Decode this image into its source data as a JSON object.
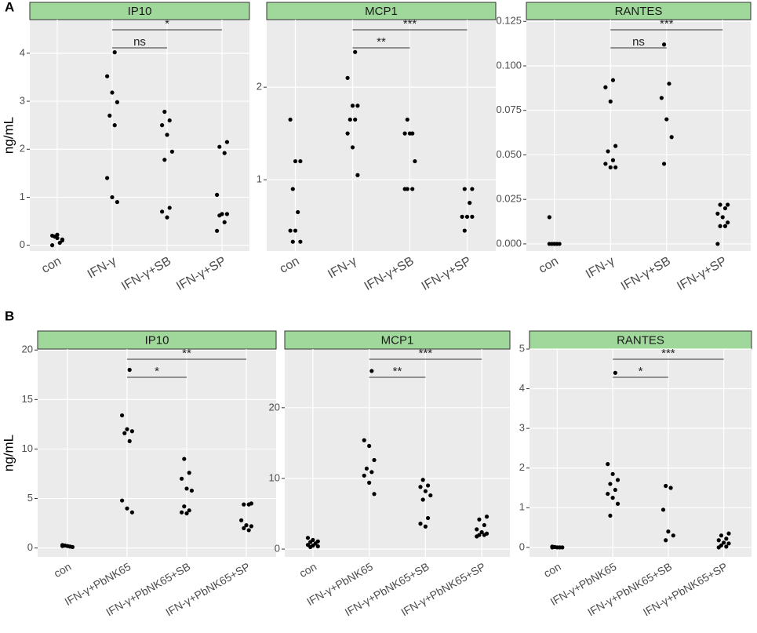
{
  "figure_labels": [
    "A",
    "B"
  ],
  "chart_data": [
    {
      "type": "strip",
      "title": "IP10",
      "ylabel": "ng/mL",
      "categories": [
        "con",
        "IFN-γ",
        "IFN-γ+SB",
        "IFN-γ+SP"
      ],
      "values": [
        [
          0.2,
          0.15,
          0.1,
          0.18,
          0.05,
          0.0,
          0.22,
          0.12
        ],
        [
          4.02,
          3.52,
          3.18,
          2.98,
          2.7,
          2.5,
          1.4,
          1.0,
          0.9
        ],
        [
          2.78,
          2.6,
          2.5,
          2.3,
          1.95,
          1.78,
          0.78,
          0.7,
          0.58
        ],
        [
          2.15,
          2.05,
          1.92,
          1.05,
          0.65,
          0.65,
          0.62,
          0.48,
          0.3
        ]
      ],
      "ylim": [
        -0.12,
        4.7
      ],
      "yticks": [
        0,
        1,
        2,
        3,
        4
      ],
      "brackets": [
        {
          "label": "*",
          "between": [
            1,
            3
          ]
        },
        {
          "label": "ns",
          "between": [
            1,
            2
          ]
        }
      ]
    },
    {
      "type": "strip",
      "title": "MCP1",
      "categories": [
        "con",
        "IFN-γ",
        "IFN-γ+SB",
        "IFN-γ+SP"
      ],
      "values": [
        [
          1.65,
          1.2,
          1.2,
          0.9,
          0.65,
          0.45,
          0.45,
          0.33,
          0.33
        ],
        [
          2.38,
          2.1,
          1.8,
          1.8,
          1.65,
          1.65,
          1.5,
          1.35,
          1.05
        ],
        [
          1.65,
          1.5,
          1.5,
          1.5,
          1.2,
          0.9,
          0.9,
          0.9
        ],
        [
          0.9,
          0.9,
          0.75,
          0.6,
          0.6,
          0.6,
          0.45
        ]
      ],
      "ylim": [
        0.23,
        2.73
      ],
      "yticks": [
        1,
        2
      ],
      "brackets": [
        {
          "label": "***",
          "between": [
            1,
            3
          ]
        },
        {
          "label": "**",
          "between": [
            1,
            2
          ]
        }
      ]
    },
    {
      "type": "strip",
      "title": "RANTES",
      "categories": [
        "con",
        "IFN-γ",
        "IFN-γ+SB",
        "IFN-γ+SP"
      ],
      "values": [
        [
          0.015,
          0,
          0,
          0,
          0,
          0,
          0
        ],
        [
          0.092,
          0.088,
          0.08,
          0.055,
          0.052,
          0.047,
          0.045,
          0.043,
          0.043
        ],
        [
          0.112,
          0.09,
          0.082,
          0.07,
          0.06,
          0.045
        ],
        [
          0.022,
          0.022,
          0.02,
          0.017,
          0.015,
          0.012,
          0.01,
          0.01,
          0.0
        ]
      ],
      "ylim": [
        -0.004,
        0.126
      ],
      "yticks": [
        {
          "value": 0,
          "label": "0.000"
        },
        0.025,
        {
          "value": 0.05,
          "label": "0.050"
        },
        0.075,
        {
          "value": 0.1,
          "label": "0.100"
        },
        0.125
      ],
      "brackets": [
        {
          "label": "***",
          "between": [
            1,
            3
          ]
        },
        {
          "label": "ns",
          "between": [
            1,
            2
          ]
        }
      ]
    },
    {
      "type": "strip",
      "title": "IP10",
      "ylabel": "ng/mL",
      "categories": [
        "con",
        "IFN-γ+PbNK65",
        "IFN-γ+PbNK65+SB",
        "IFN-γ+PbNK65+SP"
      ],
      "values": [
        [
          0.3,
          0.2,
          0.1,
          0.25,
          0.15,
          0.2
        ],
        [
          18,
          13.4,
          12,
          11.8,
          11.6,
          10.8,
          4.8,
          4,
          3.6
        ],
        [
          9,
          7.6,
          7,
          6,
          5.8,
          4.2,
          3.8,
          3.6,
          3.5
        ],
        [
          4.5,
          4.4,
          4.4,
          2.8,
          2.3,
          2.2,
          2,
          1.8
        ]
      ],
      "ylim": [
        -0.9,
        20.1
      ],
      "yticks": [
        0,
        5,
        10,
        15,
        20
      ],
      "brackets": [
        {
          "label": "**",
          "between": [
            1,
            3
          ]
        },
        {
          "label": "*",
          "between": [
            1,
            2
          ]
        }
      ]
    },
    {
      "type": "strip",
      "title": "MCP1",
      "categories": [
        "con",
        "IFN-γ+PbNK65",
        "IFN-γ+PbNK65+SB",
        "IFN-γ+PbNK65+SP"
      ],
      "values": [
        [
          1.6,
          1.3,
          1.1,
          1,
          0.8,
          0.6,
          0.5,
          0.4,
          0.3
        ],
        [
          25.2,
          15.4,
          14.6,
          12.6,
          11.4,
          10.9,
          10.4,
          9.4,
          7.8
        ],
        [
          9.8,
          9,
          8.8,
          8.2,
          7.6,
          7,
          4.4,
          3.6,
          3.2
        ],
        [
          4.6,
          4.2,
          3.4,
          2.8,
          2.4,
          2.2,
          2,
          2,
          1.8
        ]
      ],
      "ylim": [
        -1.1,
        28.3
      ],
      "yticks": [
        0,
        10,
        20
      ],
      "brackets": [
        {
          "label": "***",
          "between": [
            1,
            3
          ]
        },
        {
          "label": "**",
          "between": [
            1,
            2
          ]
        }
      ]
    },
    {
      "type": "strip",
      "title": "RANTES",
      "categories": [
        "con",
        "IFN-γ+PbNK65",
        "IFN-γ+PbNK65+SB",
        "IFN-γ+PbNK65+SP"
      ],
      "values": [
        [
          0.02,
          0,
          0,
          0.01,
          0,
          0
        ],
        [
          4.4,
          2.1,
          1.85,
          1.7,
          1.6,
          1.45,
          1.35,
          1.25,
          1.1,
          0.8
        ],
        [
          1.55,
          1.5,
          0.95,
          0.4,
          0.3,
          0.18
        ],
        [
          0.35,
          0.3,
          0.22,
          0.18,
          0.12,
          0.1,
          0.05,
          0.02,
          0
        ]
      ],
      "ylim": [
        -0.24,
        5.0
      ],
      "yticks": [
        0,
        1,
        2,
        3,
        4,
        5
      ],
      "brackets": [
        {
          "label": "***",
          "between": [
            1,
            3
          ]
        },
        {
          "label": "*",
          "between": [
            1,
            2
          ]
        }
      ]
    }
  ]
}
